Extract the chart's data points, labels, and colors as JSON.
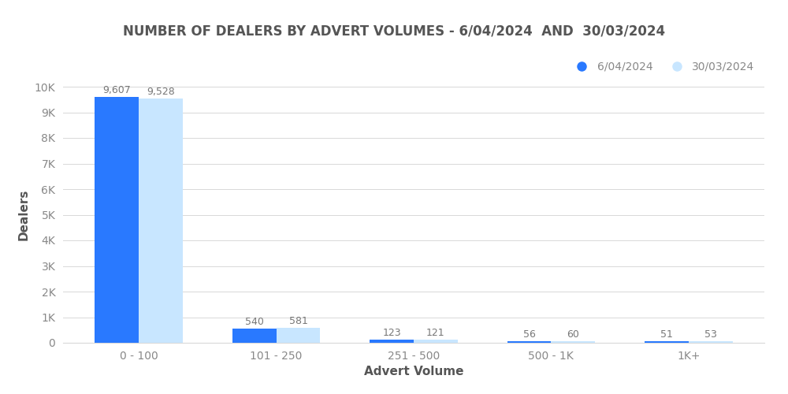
{
  "title": "NUMBER OF DEALERS BY ADVERT VOLUMES - 6/04/2024  AND  30/03/2024",
  "xlabel": "Advert Volume",
  "ylabel": "Dealers",
  "categories": [
    "0 - 100",
    "101 - 250",
    "251 - 500",
    "500 - 1K",
    "1K+"
  ],
  "values_date1": [
    9607,
    540,
    123,
    56,
    51
  ],
  "values_date2": [
    9528,
    581,
    121,
    60,
    53
  ],
  "color_date1": "#2979FF",
  "color_date2": "#C8E6FF",
  "label_date1": "6/04/2024",
  "label_date2": "30/03/2024",
  "bar_width": 0.32,
  "ylim": [
    0,
    10000
  ],
  "yticks": [
    0,
    1000,
    2000,
    3000,
    4000,
    5000,
    6000,
    7000,
    8000,
    9000,
    10000
  ],
  "ytick_labels": [
    "0",
    "1K",
    "2K",
    "3K",
    "4K",
    "5K",
    "6K",
    "7K",
    "8K",
    "9K",
    "10K"
  ],
  "background_color": "#ffffff",
  "grid_color": "#d8d8d8",
  "title_fontsize": 12,
  "axis_label_fontsize": 11,
  "tick_fontsize": 10,
  "annotation_fontsize": 9,
  "legend_fontsize": 10,
  "title_color": "#555555",
  "axis_label_color": "#555555",
  "tick_color": "#888888",
  "annotation_color": "#777777"
}
